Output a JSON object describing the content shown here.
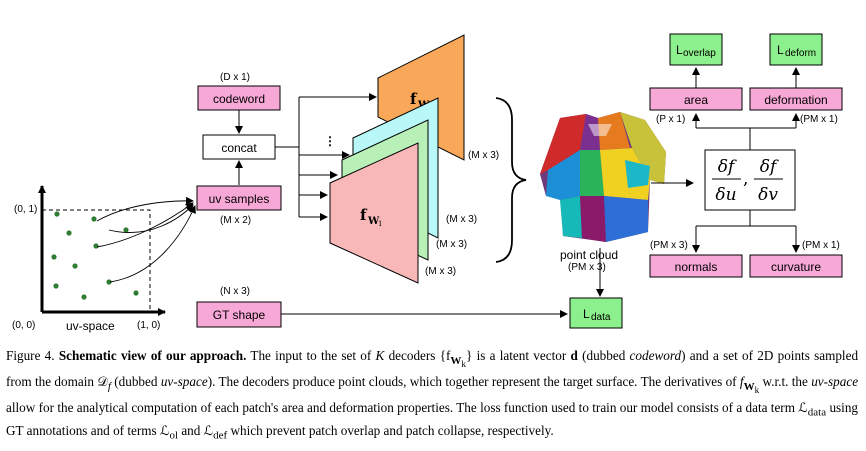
{
  "uv": {
    "origin": "(0, 0)",
    "x_end": "(1, 0)",
    "y_end": "(0, 1)",
    "axis_label": "uv-space"
  },
  "boxes": {
    "codeword": "codeword",
    "codeword_dim": "(D x 1)",
    "concat": "concat",
    "uv_samples": "uv samples",
    "uv_samples_dim": "(M x 2)",
    "gt_shape": "GT shape",
    "gt_dim": "(N x 3)",
    "dots": "⋮"
  },
  "decoders": {
    "top_label": "f",
    "top_sub": "W",
    "top_subsub": "P",
    "bottom_label": "f",
    "bottom_sub": "W",
    "bottom_subsub": "1",
    "dim_top": "(M x 3)",
    "dim_a": "(M x 3)",
    "dim_b": "(M x 3)",
    "dim_c": "(M x 3)"
  },
  "pointcloud": {
    "label": "point cloud",
    "dim": "(PM x 3)"
  },
  "losses": {
    "overlap_L": "L",
    "overlap_sub": "overlap",
    "deform_L": "L",
    "deform_sub": "deform",
    "data_L": "L",
    "data_sub": "data"
  },
  "props": {
    "area": "area",
    "area_dim": "(P x 1)",
    "deformation": "deformation",
    "deformation_dim": "(PM x 1)",
    "normals": "normals",
    "normals_dim": "(PM x 3)",
    "curvature": "curvature",
    "curvature_dim": "(PM x 1)"
  },
  "derivative": {
    "df": "δf",
    "du": "δu",
    "dv": "δv",
    "comma": ","
  },
  "colors": {
    "pink": "#F7A8D6",
    "green": "#8CF08C",
    "orange": "#F8A858",
    "cyan": "#B8F8F8",
    "light_green": "#B8F0B8",
    "light_pink": "#F8B8B8",
    "dot_green": "#2E7D32"
  },
  "caption": {
    "fig": "Figure 4.",
    "title": "Schematic view of our approach.",
    "t1": "The input to the set of",
    "K": "K",
    "t2": "decoders",
    "decoders_set": "{f",
    "decoders_sub": "W",
    "decoders_subsub": "k",
    "decoders_close": "}",
    "t3": "is a latent vector",
    "d": "d",
    "t4": "(dubbed",
    "codeword": "codeword",
    "t5": ") and a set of 2D points sampled from the domain",
    "Df": "𝒟",
    "Df_sub": "f",
    "t6": "(dubbed",
    "uvspace": "uv-space",
    "t7": "). The decoders produce point clouds, which together represent the target surface. The derivatives of",
    "f2": "f",
    "f2_sub": "W",
    "f2_subsub": "k",
    "t8": "w.r.t. the",
    "uvspace2": "uv-space",
    "t9": "allow for the analytical computation of each patch's area and deformation properties. The loss function used to train our model consists of a data term",
    "Ldata": "ℒ",
    "Ldata_sub": "data",
    "t10": "using GT annotations and of terms",
    "Lol": "ℒ",
    "Lol_sub": "ol",
    "t11": "and",
    "Ldef": "ℒ",
    "Ldef_sub": "def",
    "t12": "which prevent patch overlap and patch collapse, respectively."
  }
}
